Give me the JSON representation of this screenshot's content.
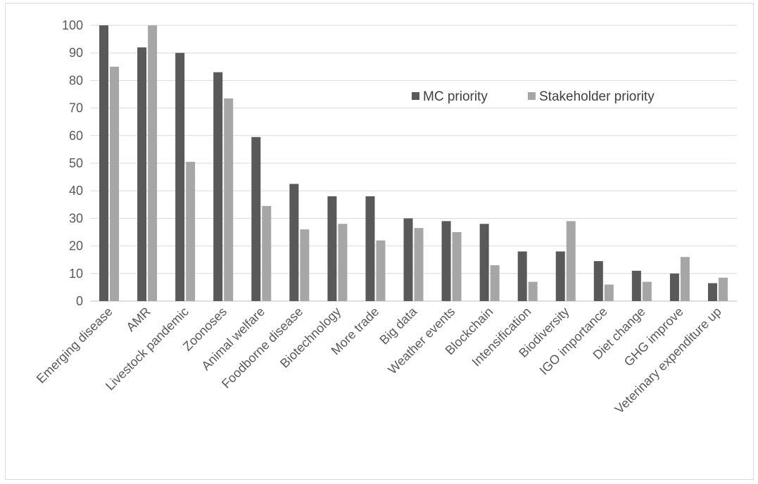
{
  "chart_data": {
    "type": "bar",
    "categories": [
      "Emerging disease",
      "AMR",
      "Livestock pandemic",
      "Zoonoses",
      "Animal welfare",
      "Foodborne disease",
      "Biotechnology",
      "More trade",
      "Big data",
      "Weather events",
      "Blockchain",
      "Intensification",
      "Biodiversity",
      "IGO importance",
      "Diet change",
      "GHG improve",
      "Veterinary expenditure up"
    ],
    "series": [
      {
        "name": "MC priority",
        "color": "#595959",
        "values": [
          100,
          92,
          90,
          83,
          59.5,
          42.5,
          38,
          38,
          30,
          29,
          28,
          18,
          18,
          14.5,
          11,
          10,
          6.5
        ]
      },
      {
        "name": "Stakeholder priority",
        "color": "#a6a6a6",
        "values": [
          85,
          100,
          50.5,
          73.5,
          34.5,
          26,
          28,
          22,
          26.5,
          25,
          13,
          7,
          29,
          6,
          7,
          16,
          8.5
        ]
      }
    ],
    "yticks": [
      "0",
      "10",
      "20",
      "30",
      "40",
      "50",
      "60",
      "70",
      "80",
      "90",
      "100"
    ],
    "ylim": [
      0,
      100
    ],
    "grid": true,
    "legend_position": "top-right",
    "gridline_color": "#d9d9d9"
  }
}
